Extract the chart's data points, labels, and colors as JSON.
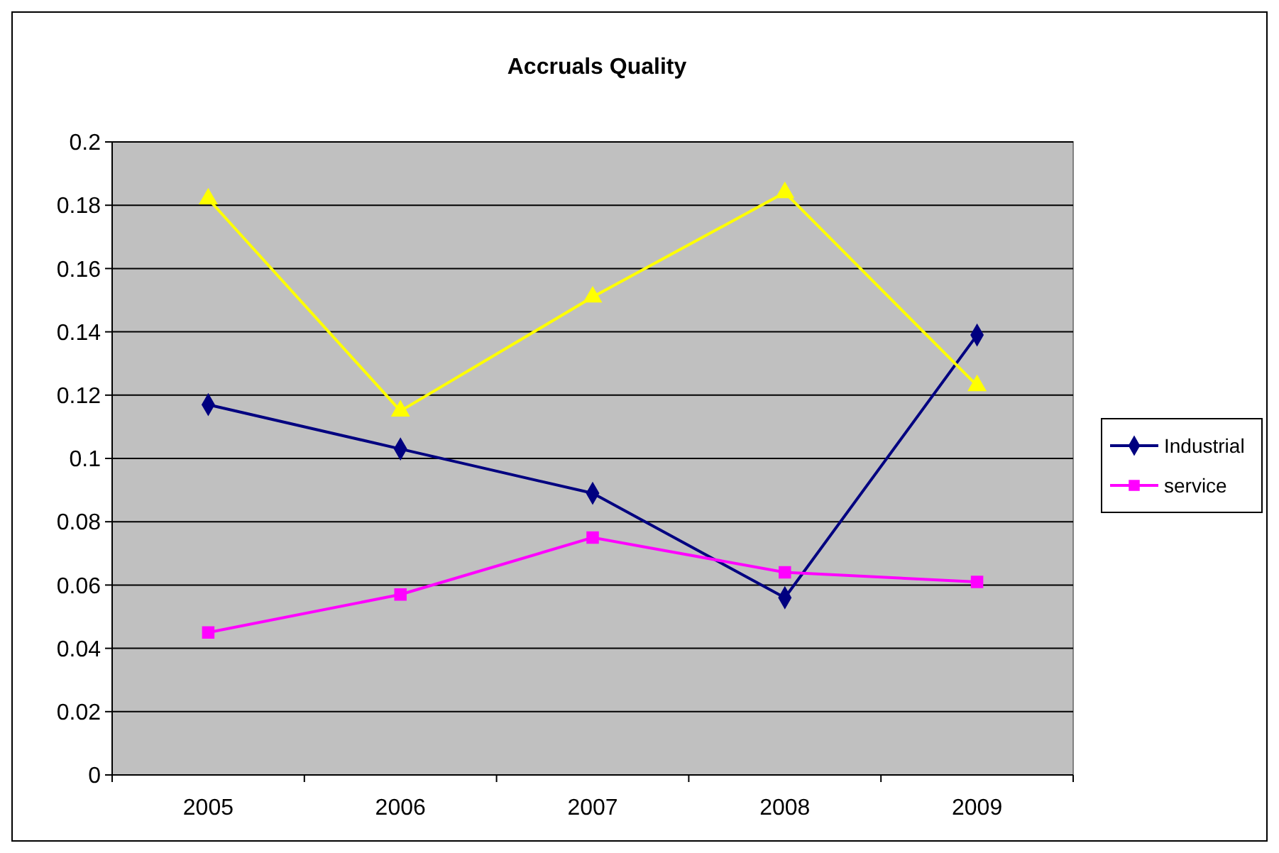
{
  "chart_data": {
    "type": "line",
    "title": "Accruals Quality",
    "categories": [
      "2005",
      "2006",
      "2007",
      "2008",
      "2009"
    ],
    "series": [
      {
        "name": "Industrial",
        "color": "#000080",
        "marker": "diamond",
        "values": [
          0.117,
          0.103,
          0.089,
          0.056,
          0.139
        ]
      },
      {
        "name": "service",
        "color": "#ff00ff",
        "marker": "square",
        "values": [
          0.045,
          0.057,
          0.075,
          0.064,
          0.061
        ]
      },
      {
        "color": "#ffff00",
        "marker": "triangle",
        "values": [
          0.182,
          0.115,
          0.151,
          0.184,
          0.123
        ]
      }
    ],
    "ylim": [
      0,
      0.2
    ],
    "yticks": [
      0,
      0.02,
      0.04,
      0.06,
      0.08,
      0.1,
      0.12,
      0.14,
      0.16,
      0.18,
      0.2
    ],
    "grid": "y",
    "legend": "right"
  }
}
